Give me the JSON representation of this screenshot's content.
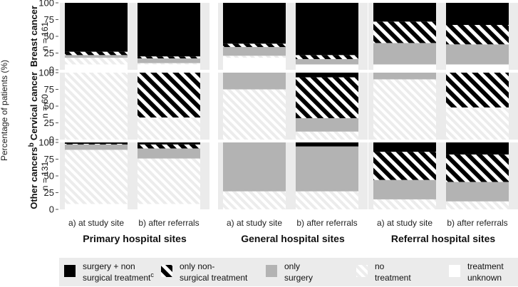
{
  "chart_data": {
    "type": "bar",
    "stacking": "percent",
    "ylabel": "Percentage of patients (%)",
    "yticks": [
      0,
      25,
      50,
      75,
      100
    ],
    "ylim": [
      0,
      100
    ],
    "categories": [
      "a) at study site",
      "b) after referrals"
    ],
    "rows": [
      {
        "label": "Breast cancer",
        "n": "n = 161",
        "sup": ""
      },
      {
        "label": "Cervical cancer",
        "n": "n = 60",
        "sup": ""
      },
      {
        "label": "Other cancers",
        "n": "n = 131",
        "sup": "b"
      }
    ],
    "columns": [
      {
        "title": "Primary hospital sites"
      },
      {
        "title": "General hospital sites"
      },
      {
        "title": "Referral hospital sites"
      }
    ],
    "series": [
      {
        "key": "unknown",
        "name": "treatment unknown",
        "color": "#ffffff",
        "pattern": "none"
      },
      {
        "key": "none",
        "name": "no treatment",
        "color": "#f2f2f2",
        "pattern": "light-hatch"
      },
      {
        "key": "surgery",
        "name": "only surgery",
        "color": "#b3b3b3",
        "pattern": "none"
      },
      {
        "key": "nonsurg",
        "name": "only non-surgical treatment",
        "color": "#000000",
        "pattern": "black-white-stripes"
      },
      {
        "key": "both",
        "name": "surgery + non surgical treatment",
        "sup": "c",
        "color": "#000000",
        "pattern": "none"
      }
    ],
    "panels": [
      [
        [
          {
            "unknown": 8,
            "none": 10,
            "surgery": 4,
            "nonsurg": 5,
            "both": 73
          },
          {
            "unknown": 8,
            "none": 2,
            "surgery": 7,
            "nonsurg": 3,
            "both": 80
          }
        ],
        [
          {
            "unknown": 18,
            "none": 3,
            "surgery": 13,
            "nonsurg": 5,
            "both": 61
          },
          {
            "unknown": 8,
            "none": 0,
            "surgery": 8,
            "nonsurg": 6,
            "both": 78
          }
        ],
        [
          {
            "unknown": 8,
            "none": 0,
            "surgery": 32,
            "nonsurg": 32,
            "both": 28
          },
          {
            "unknown": 8,
            "none": 0,
            "surgery": 30,
            "nonsurg": 29,
            "both": 33
          }
        ]
      ],
      [
        [
          {
            "unknown": 0,
            "none": 100,
            "surgery": 0,
            "nonsurg": 0,
            "both": 0
          },
          {
            "unknown": 0,
            "none": 33,
            "surgery": 0,
            "nonsurg": 67,
            "both": 0
          }
        ],
        [
          {
            "unknown": 0,
            "none": 75,
            "surgery": 25,
            "nonsurg": 0,
            "both": 0
          },
          {
            "unknown": 0,
            "none": 12,
            "surgery": 20,
            "nonsurg": 61,
            "both": 7
          }
        ],
        [
          {
            "unknown": 0,
            "none": 90,
            "surgery": 10,
            "nonsurg": 0,
            "both": 0
          },
          {
            "unknown": 0,
            "none": 48,
            "surgery": 0,
            "nonsurg": 52,
            "both": 0
          }
        ]
      ],
      [
        [
          {
            "unknown": 8,
            "none": 81,
            "surgery": 8,
            "nonsurg": 1,
            "both": 2
          },
          {
            "unknown": 8,
            "none": 68,
            "surgery": 15,
            "nonsurg": 6,
            "both": 3
          }
        ],
        [
          {
            "unknown": 0,
            "none": 27,
            "surgery": 73,
            "nonsurg": 0,
            "both": 0
          },
          {
            "unknown": 0,
            "none": 27,
            "surgery": 67,
            "nonsurg": 0,
            "both": 6
          }
        ],
        [
          {
            "unknown": 0,
            "none": 15,
            "surgery": 29,
            "nonsurg": 42,
            "both": 14
          },
          {
            "unknown": 0,
            "none": 12,
            "surgery": 29,
            "nonsurg": 41,
            "both": 18
          }
        ]
      ]
    ],
    "legend": {
      "position": "bottom",
      "items": [
        {
          "key": "both",
          "line1": "surgery + non",
          "line2": "surgical treatment",
          "sup": "c"
        },
        {
          "key": "nonsurg",
          "line1": "only non-",
          "line2": "surgical treatment",
          "sup": ""
        },
        {
          "key": "surgery",
          "line1": "only",
          "line2": "surgery",
          "sup": ""
        },
        {
          "key": "none",
          "line1": "no",
          "line2": "treatment",
          "sup": ""
        },
        {
          "key": "unknown",
          "line1": "treatment",
          "line2": "unknown",
          "sup": ""
        }
      ]
    }
  }
}
